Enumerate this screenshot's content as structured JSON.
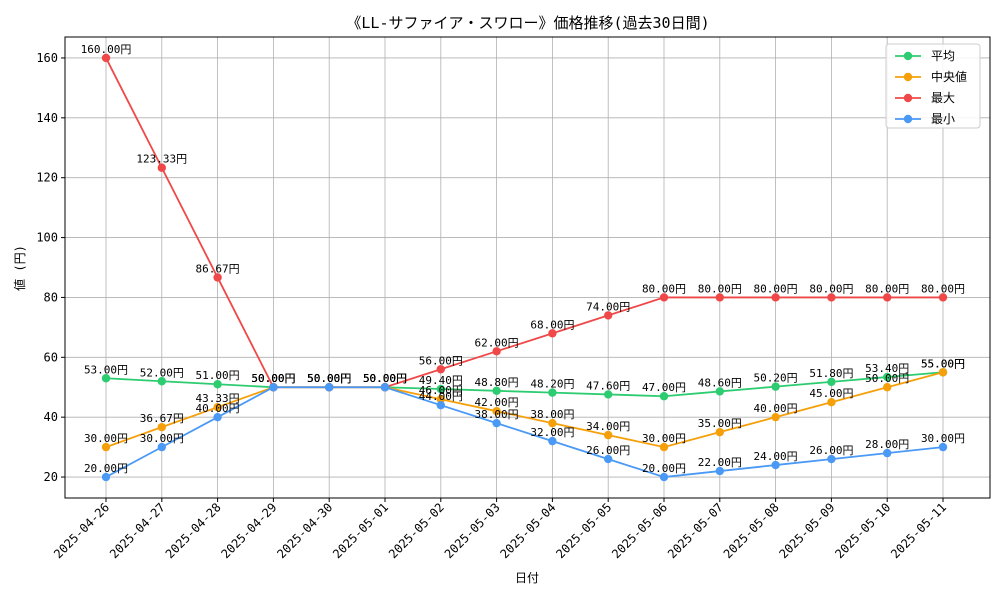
{
  "chart_data": {
    "type": "line",
    "title": "《LL-サファイア・スワロー》価格推移(過去30日間)",
    "xlabel": "日付",
    "ylabel": "値 (円)",
    "categories": [
      "2025-04-26",
      "2025-04-27",
      "2025-04-28",
      "2025-04-29",
      "2025-04-30",
      "2025-05-01",
      "2025-05-02",
      "2025-05-03",
      "2025-05-04",
      "2025-05-05",
      "2025-05-06",
      "2025-05-07",
      "2025-05-08",
      "2025-05-09",
      "2025-05-10",
      "2025-05-11"
    ],
    "ylim": [
      13,
      167
    ],
    "yticks": [
      "20",
      "40",
      "60",
      "80",
      "100",
      "120",
      "140",
      "160"
    ],
    "grid": true,
    "legend_position": "top-right",
    "value_suffix": "円",
    "series": [
      {
        "name": "平均",
        "color": "#2ecc71",
        "values": [
          53,
          52,
          51,
          50,
          50,
          50,
          49.4,
          48.8,
          48.2,
          47.6,
          47,
          48.6,
          50.2,
          51.8,
          53.4,
          55
        ]
      },
      {
        "name": "中央値",
        "color": "#f5a00a",
        "values": [
          30,
          36.67,
          43.33,
          50,
          50,
          50,
          46,
          42,
          38,
          34,
          30,
          35,
          40,
          45,
          50,
          55
        ]
      },
      {
        "name": "最大",
        "color": "#f04848",
        "values": [
          160,
          123.33,
          86.67,
          50,
          50,
          50,
          56,
          62,
          68,
          74,
          80,
          80,
          80,
          80,
          80,
          80
        ]
      },
      {
        "name": "最小",
        "color": "#4a99f5",
        "values": [
          20,
          30,
          40,
          50,
          50,
          50,
          44,
          38,
          32,
          26,
          20,
          22,
          24,
          26,
          28,
          30
        ]
      }
    ]
  }
}
